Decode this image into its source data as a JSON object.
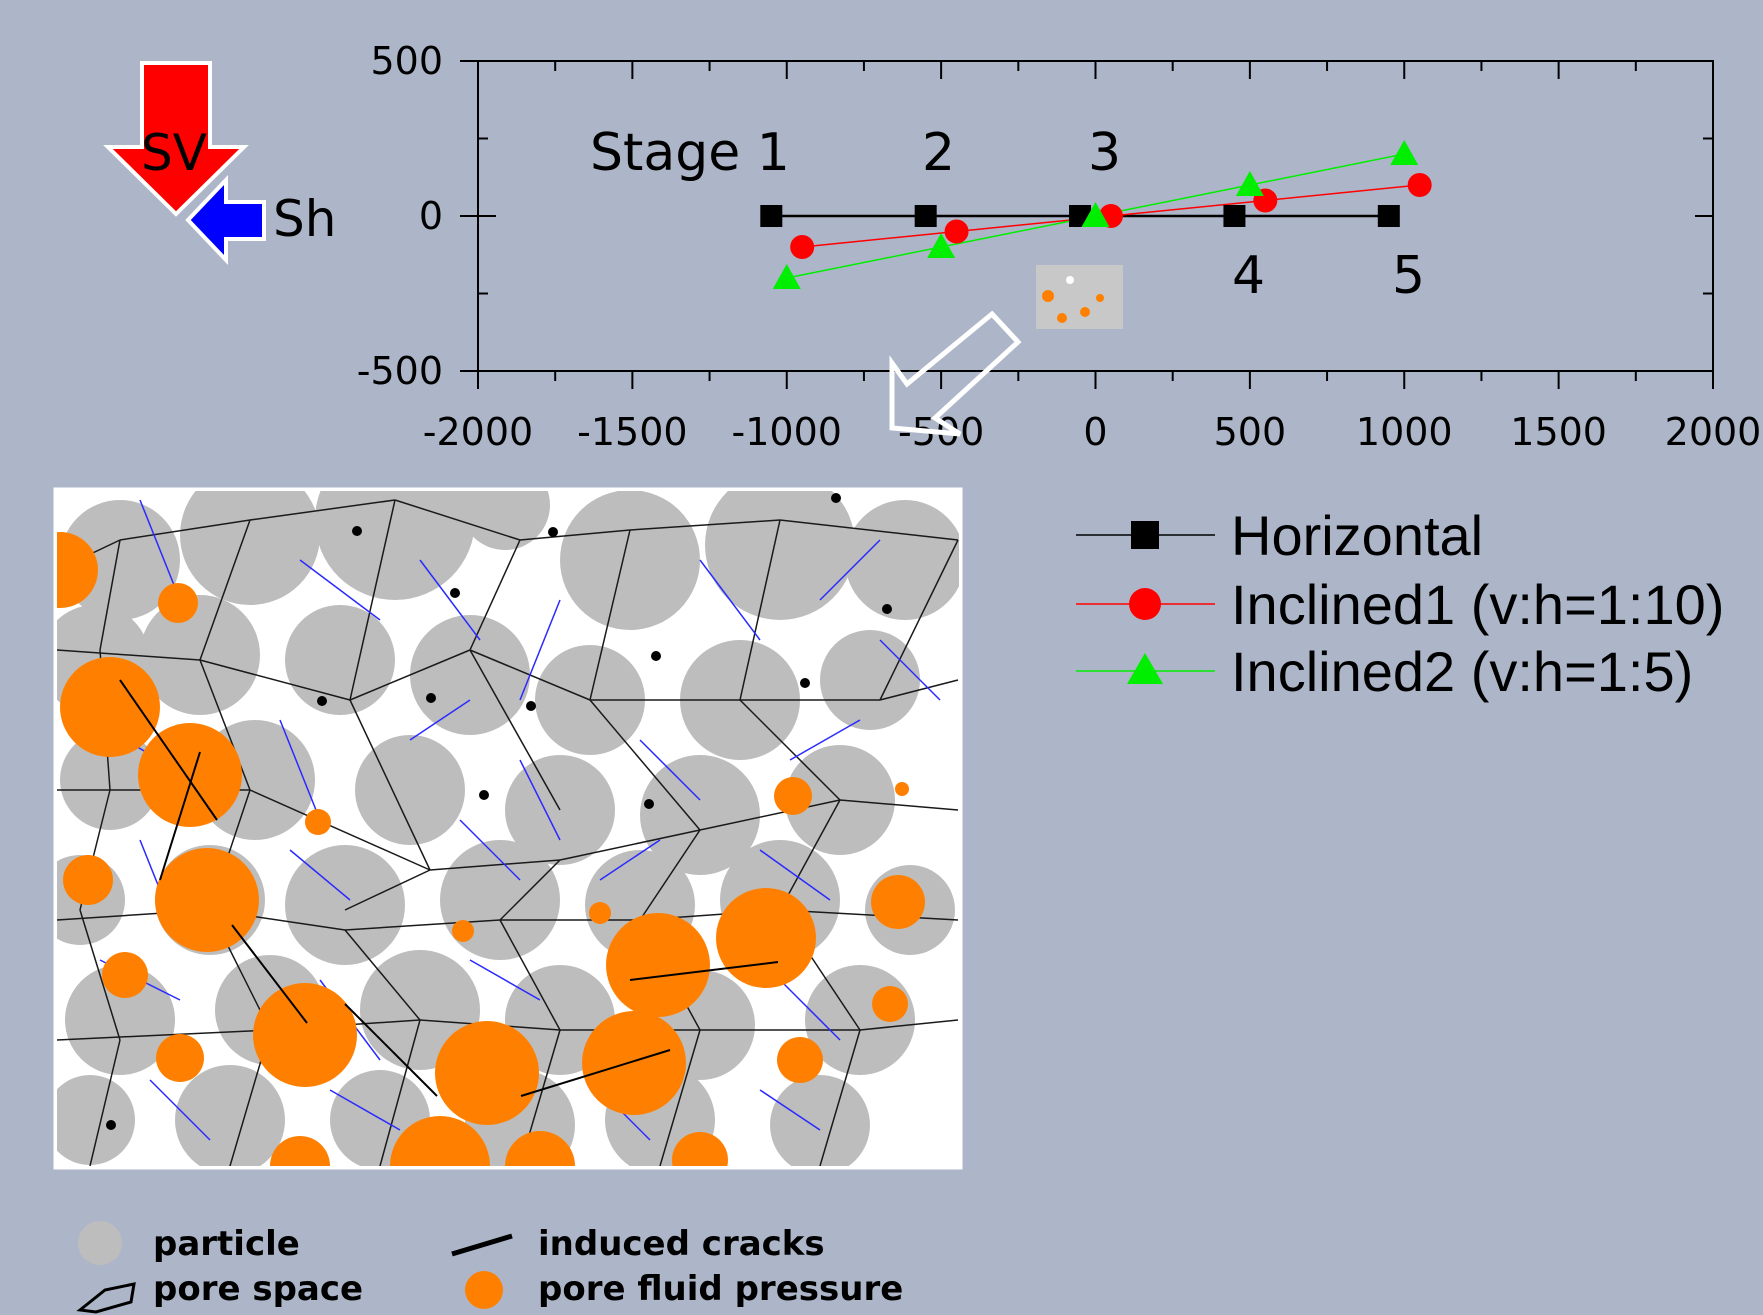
{
  "colors": {
    "background": "#adb6c9",
    "horizontal": "#000000",
    "inclined1": "#ff0000",
    "inclined2": "#00ee00",
    "sv_arrow": "#ff0000",
    "sh_arrow": "#0000ff",
    "particle": "#bdbdbd",
    "pore_fluid": "#ff8000",
    "contact_line": "#1a1a1a",
    "crack_line": "#2a2aff"
  },
  "stress": {
    "sv_label": "SV",
    "sh_label": "Sh"
  },
  "chart_data": {
    "type": "scatter",
    "xlim": [
      -2000,
      2000
    ],
    "ylim": [
      -500,
      500
    ],
    "x_ticks": [
      "-2000",
      "-1500",
      "-1000",
      "-500",
      "0",
      "500",
      "1000",
      "1500",
      "2000"
    ],
    "y_ticks": [
      "500",
      "0",
      "-500"
    ],
    "grid": false,
    "legend_placement": "right, below plot",
    "series": [
      {
        "name": "Horizontal",
        "marker": "square",
        "x": [
          -1050,
          -550,
          -50,
          450,
          950
        ],
        "y": [
          0,
          0,
          0,
          0,
          0
        ]
      },
      {
        "name": "Inclined1 (v:h=1:10)",
        "marker": "circle",
        "x": [
          -950,
          -450,
          50,
          550,
          1050
        ],
        "y": [
          -100,
          -50,
          0,
          50,
          100
        ]
      },
      {
        "name": "Inclined2 (v:h=1:5)",
        "marker": "triangle",
        "x": [
          -1000,
          -500,
          0,
          500,
          1000
        ],
        "y": [
          -200,
          -100,
          0,
          100,
          200
        ]
      }
    ],
    "annotations": [
      {
        "text": "Stage 1"
      },
      {
        "text": "2"
      },
      {
        "text": "3"
      },
      {
        "text": "4"
      },
      {
        "text": "5"
      }
    ]
  },
  "key": {
    "particle": "particle",
    "pore_space": "pore space",
    "induced_cracks": "induced cracks",
    "pore_fluid_pressure": "pore fluid pressure"
  }
}
